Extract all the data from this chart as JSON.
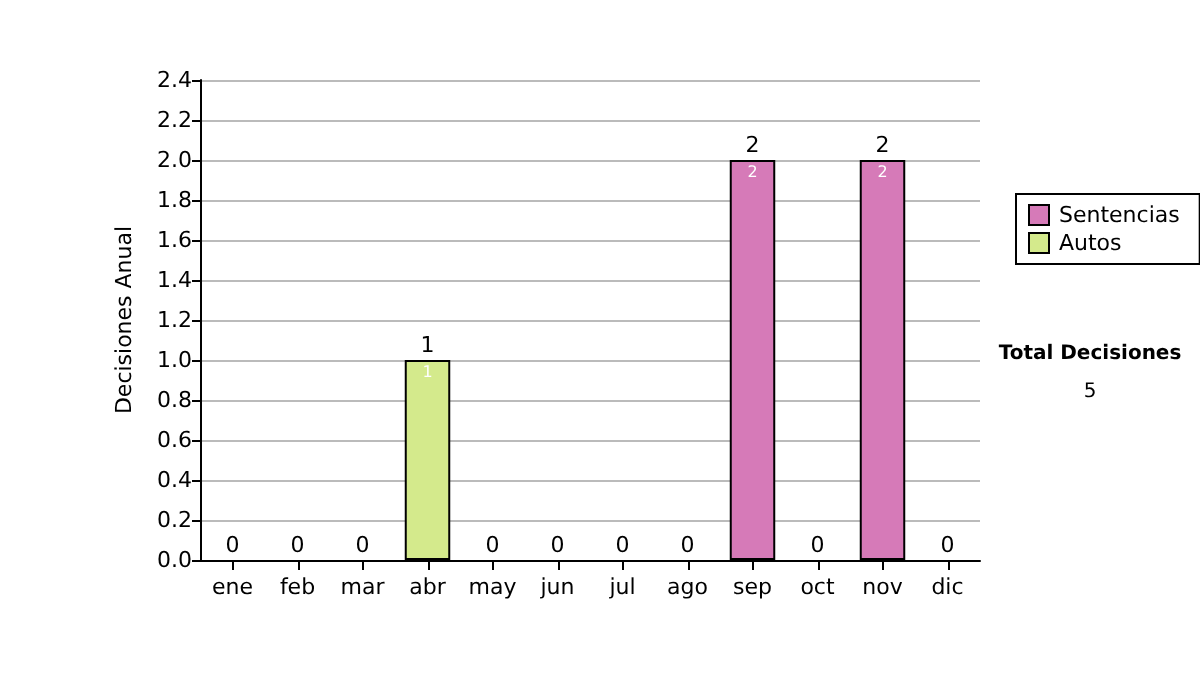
{
  "chart_data": {
    "type": "bar",
    "stacked": true,
    "ylabel": "Decisiones Anual",
    "categories": [
      "ene",
      "feb",
      "mar",
      "abr",
      "may",
      "jun",
      "jul",
      "ago",
      "sep",
      "oct",
      "nov",
      "dic"
    ],
    "series": [
      {
        "name": "Sentencias",
        "color": "#d67ab8",
        "values": [
          0,
          0,
          0,
          0,
          0,
          0,
          0,
          0,
          2,
          0,
          2,
          0
        ],
        "value_labels": [
          null,
          null,
          null,
          null,
          null,
          null,
          null,
          null,
          "2",
          null,
          "2",
          null
        ]
      },
      {
        "name": "Autos",
        "color": "#d4ea8c",
        "values": [
          0,
          0,
          0,
          1,
          0,
          0,
          0,
          0,
          0,
          0,
          0,
          0
        ],
        "value_labels": [
          null,
          null,
          null,
          "1",
          null,
          null,
          null,
          null,
          null,
          null,
          null,
          null
        ]
      }
    ],
    "totals": [
      "0",
      "0",
      "0",
      "1",
      "0",
      "0",
      "0",
      "0",
      "2",
      "0",
      "2",
      "0"
    ],
    "ylim": [
      0,
      2.4
    ],
    "yticks": [
      {
        "value": 0,
        "label": "0.0"
      },
      0.2,
      0.4,
      0.6,
      0.8,
      {
        "value": 1,
        "label": "1.0"
      },
      1.2,
      1.4,
      1.6,
      1.8,
      {
        "value": 2,
        "label": "2.0"
      },
      2.2,
      2.4
    ],
    "grid": "y",
    "legend": "right",
    "annotations": [
      "Total Decisiones",
      "5"
    ]
  }
}
